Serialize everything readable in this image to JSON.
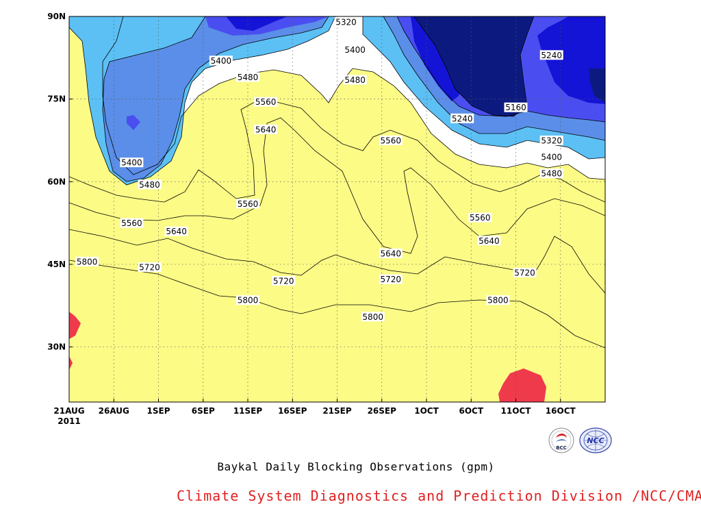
{
  "chart_data": {
    "type": "contour",
    "title": "Baykal Daily Blocking Observations (gpm)",
    "credit": "Climate System Diagnostics and Prediction Division /NCC/CMA",
    "x_ticks": [
      "21AUG",
      "26AUG",
      "1SEP",
      "6SEP",
      "11SEP",
      "16SEP",
      "21SEP",
      "26SEP",
      "1OCT",
      "6OCT",
      "11OCT",
      "16OCT"
    ],
    "x_year": "2011",
    "x_range": [
      "2011-08-21",
      "2011-10-20"
    ],
    "y_ticks": [
      "30N",
      "45N",
      "60N",
      "75N",
      "90N"
    ],
    "y_range": [
      20,
      90
    ],
    "grid": true,
    "levels": [
      5160,
      5240,
      5320,
      5400,
      5480,
      5560,
      5640,
      5720,
      5800
    ],
    "colors": {
      "lt5160": "#0c1a80",
      "5160-5240": "#1414d6",
      "5240-5320": "#4a4ef0",
      "5320-5400": "#5b8ee8",
      "5400-5480": "#5cc0f5",
      "5480-5560": "#fbfb86",
      "5560-5640": "#fde09e",
      "5640-5720": "#fba46c",
      "5720-5800": "#fb7a4a",
      "5800-5880": "#f5707c",
      "gt5880": "#ef3a4c"
    },
    "contour_labels": [
      {
        "text": "5320",
        "date": "2011-09-21",
        "lat": 89
      },
      {
        "text": "5400",
        "date": "2011-09-22",
        "lat": 84
      },
      {
        "text": "5480",
        "date": "2011-09-22",
        "lat": 78.5
      },
      {
        "text": "5400",
        "date": "2011-09-07",
        "lat": 82
      },
      {
        "text": "5480",
        "date": "2011-09-10",
        "lat": 79
      },
      {
        "text": "5560",
        "date": "2011-09-12",
        "lat": 74.5
      },
      {
        "text": "5640",
        "date": "2011-09-12",
        "lat": 69.5
      },
      {
        "text": "5400",
        "date": "2011-08-28",
        "lat": 63.5
      },
      {
        "text": "5480",
        "date": "2011-08-30",
        "lat": 59.5
      },
      {
        "text": "5560",
        "date": "2011-08-28",
        "lat": 52.5
      },
      {
        "text": "5640",
        "date": "2011-09-02",
        "lat": 51
      },
      {
        "text": "5720",
        "date": "2011-08-30",
        "lat": 44.5
      },
      {
        "text": "5800",
        "date": "2011-08-23",
        "lat": 45.5
      },
      {
        "text": "5560",
        "date": "2011-09-10",
        "lat": 56
      },
      {
        "text": "5720",
        "date": "2011-09-14",
        "lat": 42
      },
      {
        "text": "5800",
        "date": "2011-09-10",
        "lat": 38.5
      },
      {
        "text": "5800",
        "date": "2011-09-24",
        "lat": 35.5
      },
      {
        "text": "5720",
        "date": "2011-09-26",
        "lat": 42.3
      },
      {
        "text": "5640",
        "date": "2011-09-26",
        "lat": 47
      },
      {
        "text": "5560",
        "date": "2011-09-26",
        "lat": 67.5
      },
      {
        "text": "5240",
        "date": "2011-10-04",
        "lat": 71.5
      },
      {
        "text": "5160",
        "date": "2011-10-10",
        "lat": 73.5
      },
      {
        "text": "5240",
        "date": "2011-10-14",
        "lat": 83
      },
      {
        "text": "5320",
        "date": "2011-10-14",
        "lat": 67.5
      },
      {
        "text": "5400",
        "date": "2011-10-14",
        "lat": 64.5
      },
      {
        "text": "5480",
        "date": "2011-10-14",
        "lat": 61.5
      },
      {
        "text": "5560",
        "date": "2011-10-06",
        "lat": 53.5
      },
      {
        "text": "5640",
        "date": "2011-10-07",
        "lat": 49.3
      },
      {
        "text": "5720",
        "date": "2011-10-11",
        "lat": 43.5
      },
      {
        "text": "5800",
        "date": "2011-10-08",
        "lat": 38.5
      }
    ]
  },
  "logos": {
    "bcc_text": "BCC",
    "ncc_text": "NCC"
  }
}
